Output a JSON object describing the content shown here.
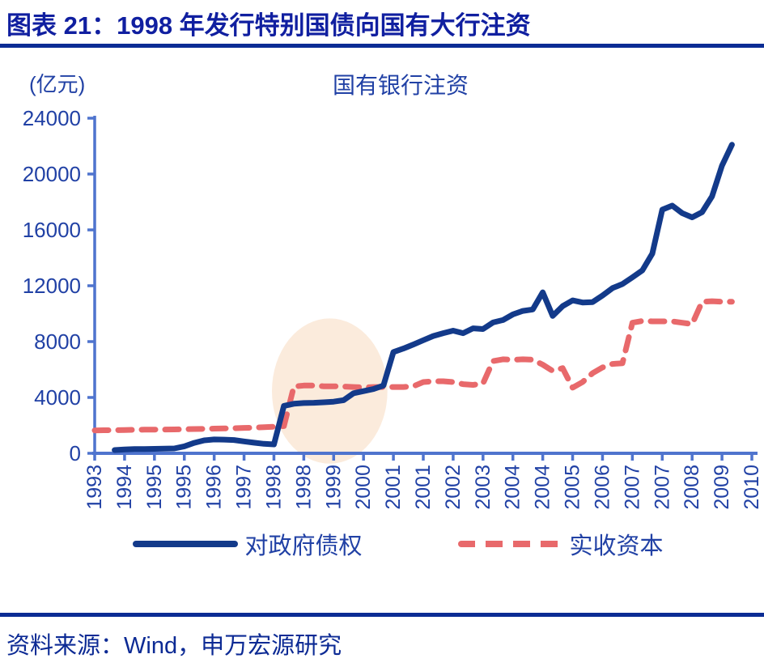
{
  "header": {
    "title": "图表 21：1998 年发行特别国债向国有大行注资"
  },
  "chart": {
    "unit_label": "(亿元)",
    "title": "国有银行注资"
  },
  "footer": {
    "source": "资料来源：Wind，申万宏源研究"
  },
  "colors": {
    "header_text": "#101fa0",
    "rule": "#0b2c94",
    "chart_label_text": "#2141a5",
    "axis": "#4f74ce",
    "series_claims": "#133a8a",
    "series_paidin": "#e8696b",
    "highlight": "#fbebdc"
  },
  "chart_data": {
    "type": "line",
    "title": "国有银行注资",
    "ylabel": "(亿元)",
    "ylim": [
      0,
      24000
    ],
    "yticks": [
      "0",
      "4000",
      "8000",
      "12000",
      "16000",
      "20000",
      "24000"
    ],
    "ytick_values": [
      0,
      4000,
      8000,
      12000,
      16000,
      20000,
      24000
    ],
    "grid": false,
    "legend_position": "bottom",
    "x_tick_labels": [
      "1993",
      "1994",
      "1995",
      "1995",
      "1996",
      "1997",
      "1998",
      "1998",
      "1999",
      "2000",
      "2001",
      "2001",
      "2002",
      "2003",
      "2004",
      "2004",
      "2005",
      "2006",
      "2007",
      "2007",
      "2008",
      "2009",
      "2010"
    ],
    "x_quarters_per_tick": 3,
    "x_total_quarters": 66,
    "series": [
      {
        "name": "对政府债权",
        "style": "solid",
        "color": "#133a8a",
        "values": [
          null,
          null,
          230,
          280,
          300,
          310,
          320,
          330,
          350,
          500,
          750,
          930,
          990,
          980,
          950,
          850,
          760,
          680,
          640,
          3400,
          3550,
          3600,
          3620,
          3650,
          3700,
          3800,
          4300,
          4450,
          4600,
          4850,
          7250,
          7500,
          7790,
          8100,
          8400,
          8600,
          8780,
          8600,
          8950,
          8900,
          9370,
          9540,
          9950,
          10200,
          10300,
          11530,
          9840,
          10540,
          10950,
          10800,
          10830,
          11300,
          11830,
          12120,
          12600,
          13100,
          14300,
          17450,
          17740,
          17200,
          16900,
          17270,
          18400,
          20600,
          22100
        ]
      },
      {
        "name": "实收资本",
        "style": "dashed",
        "color": "#e8696b",
        "values": [
          1640,
          1650,
          1660,
          1670,
          1680,
          1690,
          1700,
          1700,
          1710,
          1720,
          1740,
          1750,
          1770,
          1780,
          1800,
          1820,
          1840,
          1870,
          1900,
          1950,
          4780,
          4850,
          4850,
          4800,
          4800,
          4780,
          4750,
          4720,
          4750,
          4750,
          4750,
          4750,
          4800,
          5100,
          5160,
          5160,
          5100,
          4950,
          4900,
          5000,
          6600,
          6730,
          6700,
          6730,
          6700,
          6350,
          5900,
          6100,
          4700,
          5100,
          5740,
          6150,
          6400,
          6450,
          9350,
          9480,
          9450,
          9450,
          9450,
          9350,
          9250,
          10850,
          10890,
          10850,
          10850
        ]
      }
    ],
    "annotations": [
      {
        "type": "ellipse_highlight",
        "note": "highlights 1998 recapitalization period",
        "x_center_quarter": 23.6,
        "x_radius_quarters": 5.8,
        "y_center": 4460,
        "y_radius": 5200,
        "color": "#fbebdc"
      }
    ]
  }
}
